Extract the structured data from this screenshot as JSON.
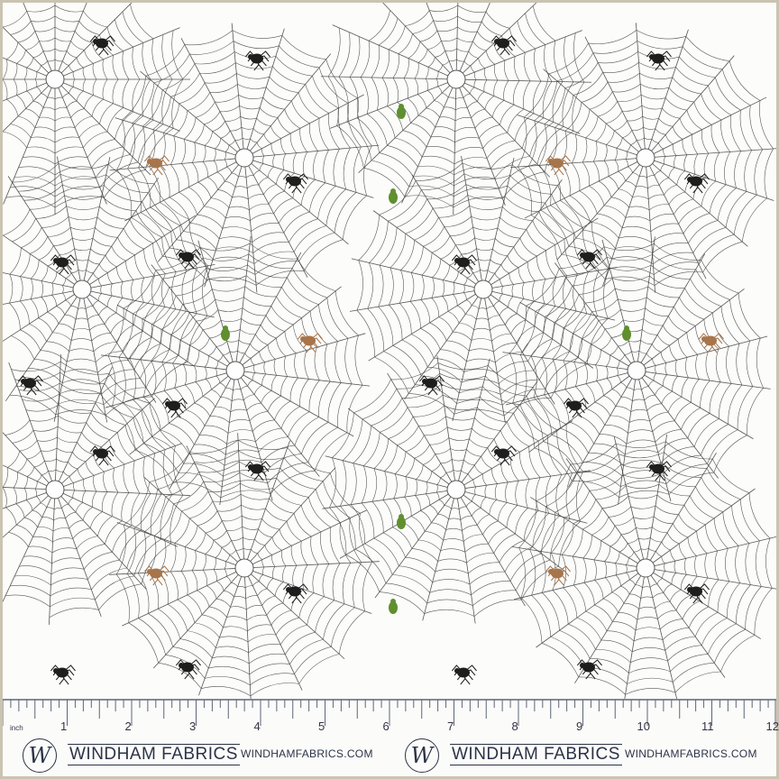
{
  "colors": {
    "border": "#cbc3b1",
    "web": "#3a3a3a",
    "ruler": "#5b6676",
    "text": "#2b3346",
    "spider_black": "#1e1e1e",
    "spider_brown": "#a8754a",
    "beetle_green": "#5f8f2f"
  },
  "ruler": {
    "unit": "inch",
    "numbers": [
      "1",
      "2",
      "3",
      "4",
      "5",
      "6",
      "7",
      "8",
      "9",
      "10",
      "11",
      "12"
    ]
  },
  "branding": [
    {
      "logo_letter": "W",
      "name": "WINDHAM FABRICS",
      "url": "WINDHAMFABRICS.COM"
    },
    {
      "logo_letter": "W",
      "name": "WINDHAM FABRICS",
      "url": "WINDHAMFABRICS.COM"
    }
  ]
}
